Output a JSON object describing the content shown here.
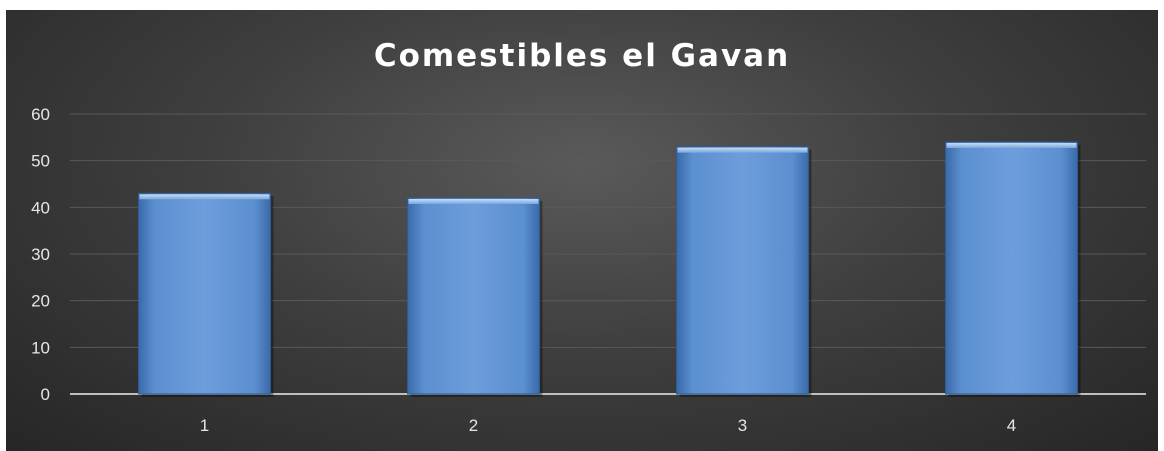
{
  "chart_data": {
    "type": "bar",
    "title": "Comestibles el Gavan",
    "categories": [
      "1",
      "2",
      "3",
      "4"
    ],
    "values": [
      43,
      42,
      53,
      54
    ],
    "xlabel": "",
    "ylabel": "",
    "ylim": [
      0,
      60
    ],
    "yticks": [
      "0",
      "10",
      "20",
      "30",
      "40",
      "50",
      "60"
    ],
    "grid": true,
    "legend": "none",
    "colors": {
      "bar": "#4f81bd",
      "bar_highlight": "#8fb4e3",
      "background": "#3f3f3f",
      "gridline": "#595959",
      "axis": "#bfbfbf"
    }
  }
}
